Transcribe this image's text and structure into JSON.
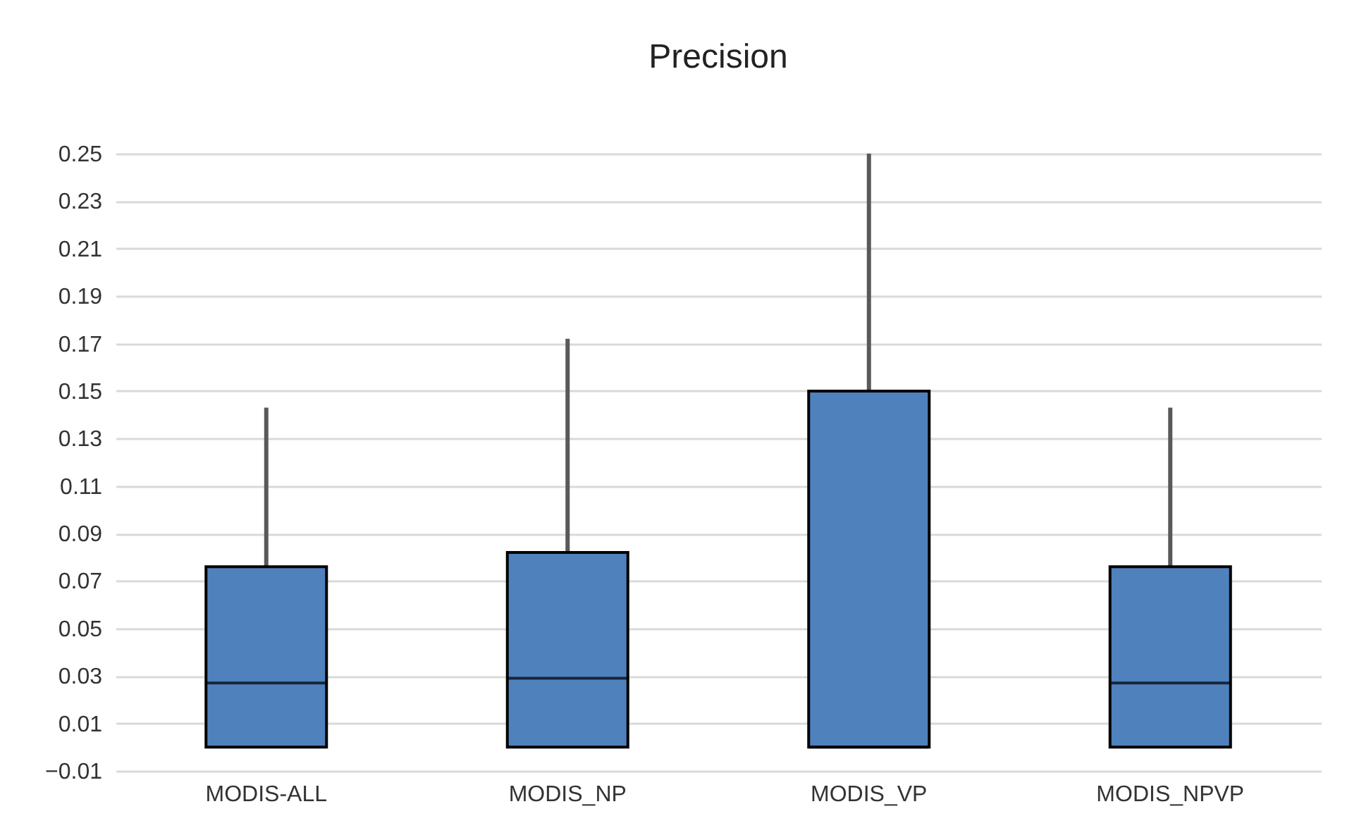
{
  "chart_data": {
    "type": "box",
    "title": "Precision",
    "categories": [
      "MODIS-ALL",
      "MODIS_NP",
      "MODIS_VP",
      "MODIS_NPVP"
    ],
    "boxes": [
      {
        "low": 0,
        "q1": 0,
        "median": 0.027,
        "q3": 0.076,
        "high": 0.143
      },
      {
        "low": 0,
        "q1": 0,
        "median": 0.029,
        "q3": 0.082,
        "high": 0.172
      },
      {
        "low": 0,
        "q1": 0,
        "median": 0,
        "q3": 0.15,
        "high": 0.25
      },
      {
        "low": 0,
        "q1": 0,
        "median": 0.027,
        "q3": 0.076,
        "high": 0.143
      }
    ],
    "color": "#4f81bd",
    "ylim": [
      -0.01,
      0.25
    ],
    "yticks": [
      -0.01,
      0.01,
      0.03,
      0.05,
      0.07,
      0.09,
      0.11,
      0.13,
      0.15,
      0.17,
      0.19,
      0.21,
      0.23,
      0.25
    ],
    "grid": "y"
  }
}
